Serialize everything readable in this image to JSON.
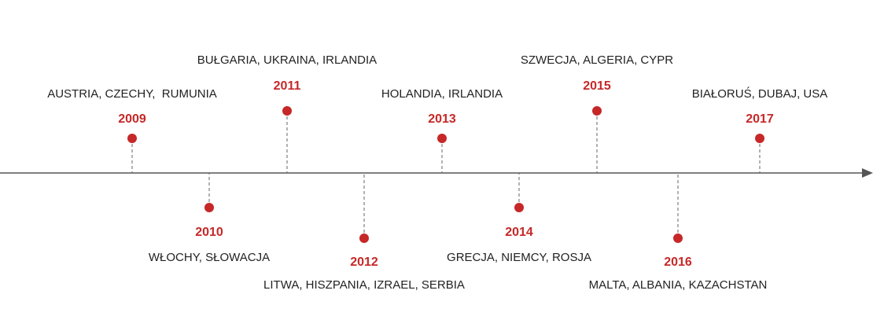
{
  "events": [
    {
      "year": "2009",
      "label": "AUSTRIA, CZECHY,  RUMUNIA"
    },
    {
      "year": "2010",
      "label": "WŁOCHY, SŁOWACJA"
    },
    {
      "year": "2011",
      "label": "BUŁGARIA, UKRAINA, IRLANDIA"
    },
    {
      "year": "2012",
      "label": "LITWA, HISZPANIA, IZRAEL, SERBIA"
    },
    {
      "year": "2013",
      "label": "HOLANDIA, IRLANDIA"
    },
    {
      "year": "2014",
      "label": "GRECJA, NIEMCY, ROSJA"
    },
    {
      "year": "2015",
      "label": "SZWECJA, ALGERIA, CYPR"
    },
    {
      "year": "2016",
      "label": "MALTA, ALBANIA, KAZACHSTAN"
    },
    {
      "year": "2017",
      "label": "BIAŁORUŚ, DUBAJ, USA"
    }
  ]
}
